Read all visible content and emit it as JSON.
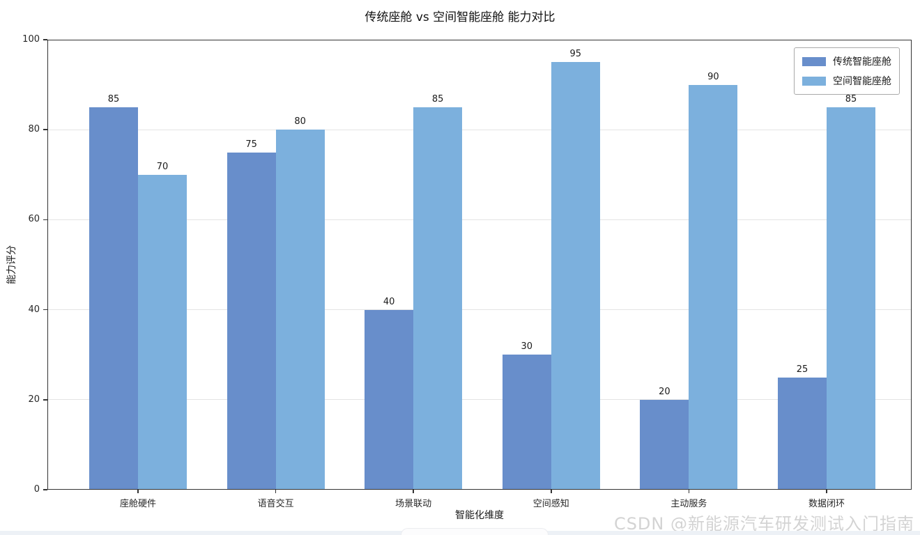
{
  "title": "传统座舱 vs 空间智能座舱 能力对比",
  "watermark": "CSDN @新能源汽车研发测试入门指南",
  "axes": {
    "xlabel": "智能化维度",
    "ylabel": "能力评分"
  },
  "colors": {
    "series1": "#688ecb",
    "series2": "#7cb0dd",
    "grid": "#e4e4e4",
    "spine": "#333333",
    "bottom_strip": "#edf1f6"
  },
  "chart_data": {
    "type": "bar",
    "title": "传统座舱 vs 空间智能座舱 能力对比",
    "categories": [
      "座舱硬件",
      "语音交互",
      "场景联动",
      "空间感知",
      "主动服务",
      "数据闭环"
    ],
    "series": [
      {
        "name": "传统智能座舱",
        "color": "#688ecb",
        "values": [
          85,
          75,
          40,
          30,
          20,
          25
        ]
      },
      {
        "name": "空间智能座舱",
        "color": "#7cb0dd",
        "values": [
          70,
          80,
          85,
          95,
          90,
          85
        ]
      }
    ],
    "xlabel": "智能化维度",
    "ylabel": "能力评分",
    "ylim": [
      0,
      100
    ],
    "yticks": [
      0,
      20,
      40,
      60,
      80,
      100
    ],
    "grid": true,
    "grid_axis": "y",
    "bar_value_labels": true,
    "legend_position": "upper-right"
  }
}
